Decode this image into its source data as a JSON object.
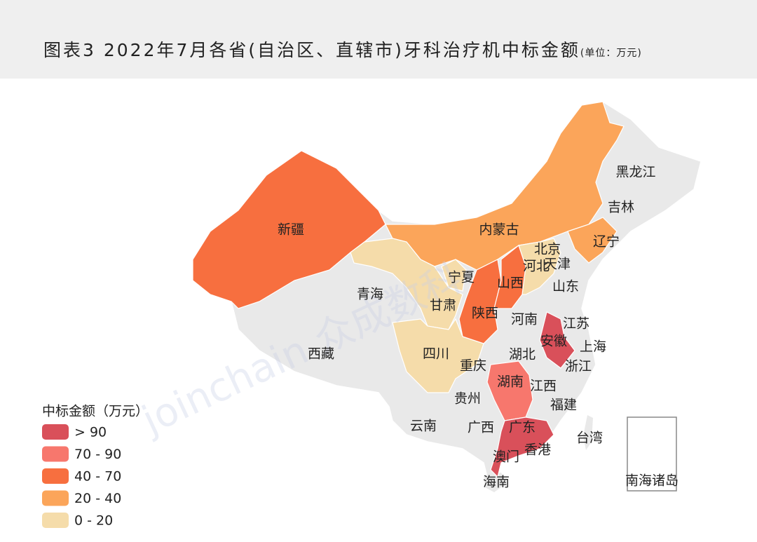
{
  "header": {
    "title": "图表3  2022年7月各省(自治区、直辖市)牙科治疗机中标金额",
    "unit": "(单位：万元)"
  },
  "watermark": "joinchain 众成数科",
  "legend": {
    "title": "中标金额（万元）",
    "items": [
      {
        "label": "> 90",
        "color": "#d9505a"
      },
      {
        "label": "70 - 90",
        "color": "#f7776d"
      },
      {
        "label": "40 - 70",
        "color": "#f76f3f"
      },
      {
        "label": "20 - 40",
        "color": "#fba55a"
      },
      {
        "label": "0 - 20",
        "color": "#f5dcaa"
      }
    ]
  },
  "regions": [
    {
      "name": "新疆",
      "color": "#f76f3f"
    },
    {
      "name": "内蒙古",
      "color": "#fba55a"
    },
    {
      "name": "辽宁",
      "color": "#fba55a"
    },
    {
      "name": "宁夏",
      "color": "#f5dcaa"
    },
    {
      "name": "甘肃",
      "color": "#f5dcaa"
    },
    {
      "name": "四川",
      "color": "#f5dcaa"
    },
    {
      "name": "河北",
      "color": "#f5dcaa"
    },
    {
      "name": "陕西",
      "color": "#f76f3f"
    },
    {
      "name": "山西",
      "color": "#f76f3f"
    },
    {
      "name": "安徽",
      "color": "#d9505a"
    },
    {
      "name": "湖南",
      "color": "#f7776d"
    },
    {
      "name": "广东",
      "color": "#d9505a"
    },
    {
      "name": "黑龙江",
      "color": "#e9e9e9"
    },
    {
      "name": "吉林",
      "color": "#e9e9e9"
    },
    {
      "name": "北京",
      "color": "#e9e9e9"
    },
    {
      "name": "天津",
      "color": "#e9e9e9"
    },
    {
      "name": "山东",
      "color": "#e9e9e9"
    },
    {
      "name": "青海",
      "color": "#e9e9e9"
    },
    {
      "name": "西藏",
      "color": "#e9e9e9"
    },
    {
      "name": "河南",
      "color": "#e9e9e9"
    },
    {
      "name": "江苏",
      "color": "#e9e9e9"
    },
    {
      "name": "上海",
      "color": "#e9e9e9"
    },
    {
      "name": "湖北",
      "color": "#e9e9e9"
    },
    {
      "name": "重庆",
      "color": "#e9e9e9"
    },
    {
      "name": "浙江",
      "color": "#e9e9e9"
    },
    {
      "name": "江西",
      "color": "#e9e9e9"
    },
    {
      "name": "贵州",
      "color": "#e9e9e9"
    },
    {
      "name": "福建",
      "color": "#e9e9e9"
    },
    {
      "name": "云南",
      "color": "#e9e9e9"
    },
    {
      "name": "广西",
      "color": "#e9e9e9"
    },
    {
      "name": "台湾",
      "color": "#e9e9e9"
    },
    {
      "name": "香港",
      "color": "#e9e9e9"
    },
    {
      "name": "澳门",
      "color": "#e9e9e9"
    },
    {
      "name": "海南",
      "color": "#e9e9e9"
    },
    {
      "name": "南海诸岛",
      "color": "#e9e9e9"
    }
  ]
}
